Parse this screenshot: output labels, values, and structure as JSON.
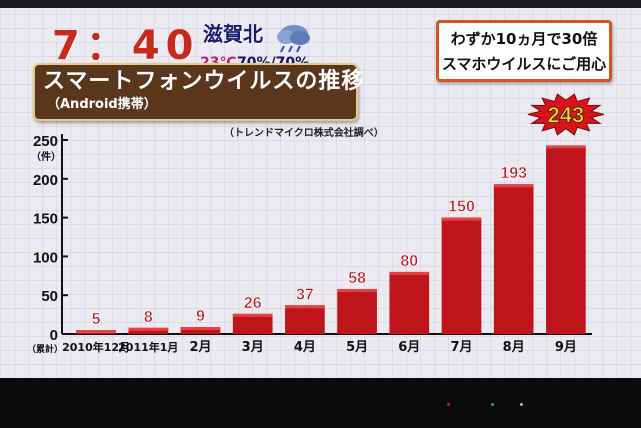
{
  "broadcast": {
    "clock": "7：40",
    "weather_location": "滋賀北",
    "temperature": "23℃",
    "humidity": "70%/70%",
    "weather_icon": "cloud-rain-icon"
  },
  "title": {
    "main": "スマートフォンウイルスの推移",
    "sub": "（Android携帯）"
  },
  "source": "（トレンドマイクロ株式会社調べ）",
  "headline": {
    "line1": "わずか10ヵ月で30倍",
    "line2": "スマホウイルスにご用心"
  },
  "colors": {
    "bar": "#c0141b",
    "title_bg": "#5a361c",
    "headline_border": "#d0561d",
    "burst": "#d8131b",
    "burst_text": "#f4e02a"
  },
  "chart_data": {
    "type": "bar",
    "categories": [
      "2010年12月",
      "2011年1月",
      "2月",
      "3月",
      "4月",
      "5月",
      "6月",
      "7月",
      "8月",
      "9月"
    ],
    "values": [
      5,
      8,
      9,
      26,
      37,
      58,
      80,
      150,
      193,
      243
    ],
    "data_labels": [
      "5",
      "8",
      "9",
      "26",
      "37",
      "58",
      "80",
      "150",
      "193",
      "243"
    ],
    "ylim": [
      0,
      250
    ],
    "yticks": [
      0,
      50,
      100,
      150,
      200,
      250
    ],
    "y_unit_top": "（件）",
    "y_unit_bottom": "（累計）",
    "highlight_index": 9,
    "grid": false
  }
}
